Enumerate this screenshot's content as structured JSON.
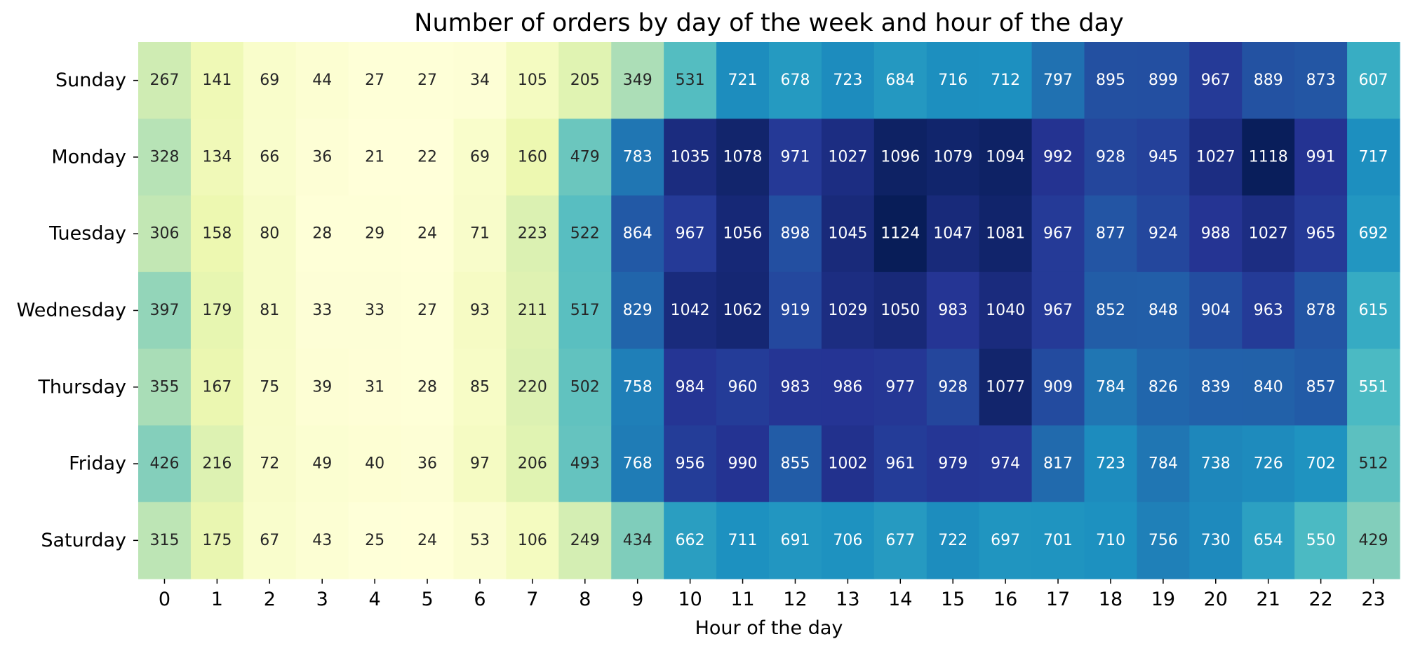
{
  "chart_data": {
    "type": "heatmap",
    "title": "Number of orders by day of the week and hour of the day",
    "xlabel": "Hour of the day",
    "ylabel": "",
    "x_categories": [
      "0",
      "1",
      "2",
      "3",
      "4",
      "5",
      "6",
      "7",
      "8",
      "9",
      "10",
      "11",
      "12",
      "13",
      "14",
      "15",
      "16",
      "17",
      "18",
      "19",
      "20",
      "21",
      "22",
      "23"
    ],
    "y_categories": [
      "Sunday",
      "Monday",
      "Tuesday",
      "Wednesday",
      "Thursday",
      "Friday",
      "Saturday"
    ],
    "values": [
      [
        267,
        141,
        69,
        44,
        27,
        27,
        34,
        105,
        205,
        349,
        531,
        721,
        678,
        723,
        684,
        716,
        712,
        797,
        895,
        899,
        967,
        889,
        873,
        607
      ],
      [
        328,
        134,
        66,
        36,
        21,
        22,
        69,
        160,
        479,
        783,
        1035,
        1078,
        971,
        1027,
        1096,
        1079,
        1094,
        992,
        928,
        945,
        1027,
        1118,
        991,
        717
      ],
      [
        306,
        158,
        80,
        28,
        29,
        24,
        71,
        223,
        522,
        864,
        967,
        1056,
        898,
        1045,
        1124,
        1047,
        1081,
        967,
        877,
        924,
        988,
        1027,
        965,
        692
      ],
      [
        397,
        179,
        81,
        33,
        33,
        27,
        93,
        211,
        517,
        829,
        1042,
        1062,
        919,
        1029,
        1050,
        983,
        1040,
        967,
        852,
        848,
        904,
        963,
        878,
        615
      ],
      [
        355,
        167,
        75,
        39,
        31,
        28,
        85,
        220,
        502,
        758,
        984,
        960,
        983,
        986,
        977,
        928,
        1077,
        909,
        784,
        826,
        839,
        840,
        857,
        551
      ],
      [
        426,
        216,
        72,
        49,
        40,
        36,
        97,
        206,
        493,
        768,
        956,
        990,
        855,
        1002,
        961,
        979,
        974,
        817,
        723,
        784,
        738,
        726,
        702,
        512
      ],
      [
        315,
        175,
        67,
        43,
        25,
        24,
        53,
        106,
        249,
        434,
        662,
        711,
        691,
        706,
        677,
        722,
        697,
        701,
        710,
        756,
        730,
        654,
        550,
        429
      ]
    ],
    "value_range": [
      21,
      1124
    ],
    "colormap": "YlGnBu",
    "colorbar": false,
    "annotations": true
  }
}
